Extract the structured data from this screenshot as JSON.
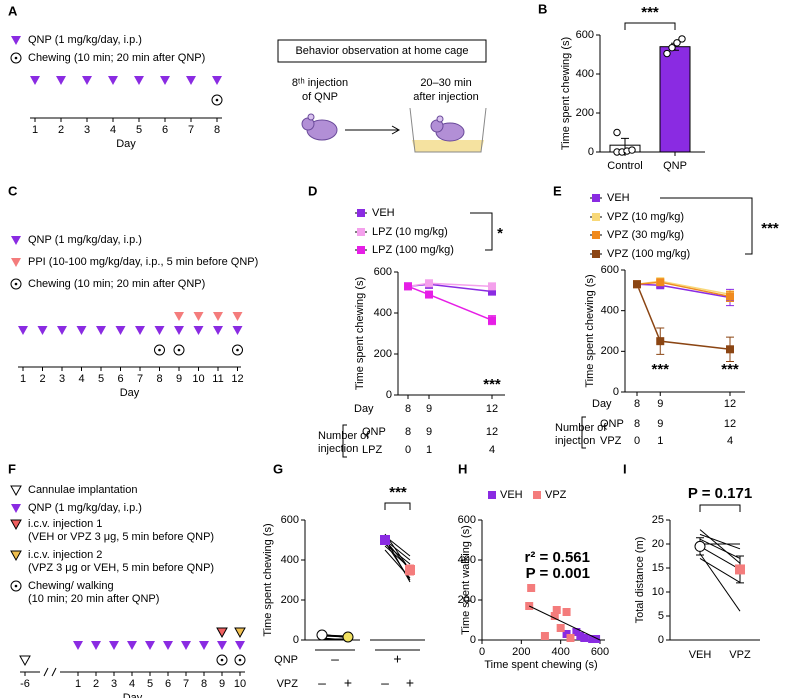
{
  "panel_labels": [
    "A",
    "B",
    "C",
    "D",
    "E",
    "F",
    "G",
    "H",
    "I"
  ],
  "timelines": [
    {
      "days": [
        1,
        2,
        3,
        4,
        5,
        6,
        7,
        8
      ],
      "axis_label": "Day",
      "items": [
        {
          "shape": "triangle",
          "color": "#8a2be2",
          "lines": [
            "QNP (1 mg/kg/day, i.p.)"
          ],
          "at": [
            1,
            2,
            3,
            4,
            5,
            6,
            7,
            8
          ]
        },
        {
          "shape": "dot",
          "color": "#000000",
          "lines": [
            "Chewing (10 min; 20 min after QNP)"
          ],
          "at": [
            8
          ]
        }
      ]
    },
    {
      "days": [
        1,
        2,
        3,
        4,
        5,
        6,
        7,
        8,
        9,
        10,
        11,
        12
      ],
      "axis_label": "Day",
      "items": [
        {
          "shape": "triangle",
          "color": "#8a2be2",
          "lines": [
            "QNP (1 mg/kg/day, i.p.)"
          ],
          "at": [
            1,
            2,
            3,
            4,
            5,
            6,
            7,
            8,
            9,
            10,
            11,
            12
          ]
        },
        {
          "shape": "triangle",
          "color": "#f47c7c",
          "lines": [
            "PPI (10-100 mg/kg/day, i.p., 5 min before QNP)"
          ],
          "at": [
            9,
            10,
            11,
            12
          ]
        },
        {
          "shape": "dot",
          "color": "#000000",
          "lines": [
            "Chewing (10 min; 20 min after QNP)"
          ],
          "at": [
            8,
            9,
            12
          ]
        }
      ]
    },
    {
      "days": [
        -6,
        1,
        2,
        3,
        4,
        5,
        6,
        7,
        8,
        9,
        10
      ],
      "axis_label": "Day",
      "items": [
        {
          "shape": "open-triangle",
          "color": "#ffffff",
          "lines": [
            "Cannulae implantation"
          ],
          "at": [
            -6
          ]
        },
        {
          "shape": "triangle",
          "color": "#8a2be2",
          "lines": [
            "QNP (1 mg/kg/day, i.p.)"
          ],
          "at": [
            1,
            2,
            3,
            4,
            5,
            6,
            7,
            8,
            9,
            10
          ]
        },
        {
          "shape": "outlined-triangle",
          "color": "#f06060",
          "lines": [
            "i.c.v. injection 1",
            "(VEH or VPZ 3 μg, 5 min before QNP)"
          ],
          "at": [
            9
          ]
        },
        {
          "shape": "outlined-triangle",
          "color": "#f0c050",
          "lines": [
            "i.c.v. injection 2",
            "(VPZ 3 μg or VEH, 5 min before QNP)"
          ],
          "at": [
            10
          ]
        },
        {
          "shape": "dot",
          "color": "#000000",
          "lines": [
            "Chewing/ walking",
            "(10 min; 20 min after QNP)"
          ],
          "at": [
            9,
            10
          ]
        }
      ]
    }
  ],
  "scheme": {
    "title": "Behavior observation at home cage",
    "left": [
      "8ᵗʰ injection",
      "of QNP"
    ],
    "right": [
      "20–30 min",
      "after injection"
    ]
  },
  "chart_data": [
    {
      "type": "bar",
      "ylabel": "Time spent chewing (s)",
      "categories": [
        "Control",
        "QNP"
      ],
      "values": [
        35,
        540
      ],
      "errors": [
        35,
        18
      ],
      "colors": [
        "#ffffff",
        "#8a2be2"
      ],
      "points": [
        [
          0,
          0,
          5,
          10,
          100
        ],
        [
          505,
          535,
          560,
          580
        ]
      ],
      "ylim": [
        0,
        600
      ],
      "yticks": [
        0,
        200,
        400,
        600
      ],
      "annotations": [
        "***"
      ]
    },
    {
      "type": "line",
      "ylabel": "Time spent chewing (s)",
      "x": [
        8,
        9,
        12
      ],
      "xticks": [
        8,
        9,
        12
      ],
      "xlabel": "Day",
      "xlim": [
        8,
        12
      ],
      "series": [
        {
          "name": "VEH",
          "color": "#8a2be2",
          "values": [
            530,
            540,
            505
          ],
          "errors": [
            15,
            20,
            18
          ]
        },
        {
          "name": "LPZ (10 mg/kg)",
          "color": "#f4a0ec",
          "values": [
            530,
            545,
            530
          ],
          "errors": [
            10,
            12,
            10
          ]
        },
        {
          "name": "LPZ (100 mg/kg)",
          "color": "#e61ee6",
          "values": [
            530,
            490,
            365
          ],
          "errors": [
            10,
            15,
            22
          ]
        }
      ],
      "ylim": [
        0,
        600
      ],
      "yticks": [
        0,
        200,
        400,
        600
      ],
      "annotations": [
        "*",
        "***"
      ],
      "table": {
        "label": [
          "Number of",
          "injection"
        ],
        "rows": [
          {
            "name": "QNP",
            "values": [
              8,
              9,
              12
            ]
          },
          {
            "name": "LPZ",
            "values": [
              0,
              1,
              4
            ]
          }
        ]
      }
    },
    {
      "type": "line",
      "ylabel": "Time spent chewing (s)",
      "x": [
        8,
        9,
        12
      ],
      "xticks": [
        8,
        9,
        12
      ],
      "xlabel": "Day",
      "xlim": [
        8,
        12
      ],
      "series": [
        {
          "name": "VEH",
          "color": "#8a2be2",
          "values": [
            530,
            525,
            465
          ],
          "errors": [
            15,
            10,
            40
          ]
        },
        {
          "name": "VPZ (10 mg/kg)",
          "color": "#f8d878",
          "values": [
            530,
            545,
            480
          ],
          "errors": [
            10,
            10,
            15
          ]
        },
        {
          "name": "VPZ (30 mg/kg)",
          "color": "#f08a1e",
          "values": [
            530,
            540,
            470
          ],
          "errors": [
            10,
            10,
            25
          ]
        },
        {
          "name": "VPZ (100 mg/kg)",
          "color": "#8b4513",
          "values": [
            530,
            250,
            210
          ],
          "errors": [
            15,
            65,
            60
          ]
        }
      ],
      "ylim": [
        0,
        600
      ],
      "yticks": [
        0,
        200,
        400,
        600
      ],
      "annotations": [
        "***",
        "***",
        "***"
      ],
      "table": {
        "label": [
          "Number of",
          "injection"
        ],
        "rows": [
          {
            "name": "QNP",
            "values": [
              8,
              9,
              12
            ]
          },
          {
            "name": "VPZ",
            "values": [
              0,
              1,
              4
            ]
          }
        ]
      }
    },
    {
      "type": "paired",
      "ylabel": "Time spent chewing (s)",
      "values": [
        25,
        15,
        500,
        350
      ],
      "errors": [
        5,
        5,
        20,
        25
      ],
      "colors": [
        "#ffffff",
        "#f0e060",
        "#8a2be2",
        "#f47c7c"
      ],
      "individuals": [
        [
          30,
          20,
          10,
          25,
          5
        ],
        [
          10,
          15,
          0,
          20,
          5
        ],
        [
          520,
          490,
          480,
          470,
          450,
          500,
          530,
          510
        ],
        [
          420,
          300,
          380,
          360,
          310,
          400,
          350,
          290
        ]
      ],
      "conditions": [
        {
          "name": "QNP",
          "labels": [
            "–",
            "+"
          ]
        },
        {
          "name": "VPZ",
          "labels": [
            "–",
            "+",
            "–",
            "+"
          ]
        }
      ],
      "ylim": [
        0,
        600
      ],
      "yticks": [
        0,
        200,
        400,
        600
      ],
      "annotations": [
        "***"
      ]
    },
    {
      "type": "scatter",
      "xlabel": "Time spent chewing (s)",
      "ylabel": "Time spent walking (s)",
      "series": [
        {
          "name": "VEH",
          "color": "#8a2be2",
          "x": [
            430,
            480,
            500,
            520,
            560,
            580
          ],
          "values": [
            30,
            40,
            20,
            10,
            5,
            5
          ]
        },
        {
          "name": "VPZ",
          "color": "#f47c7c",
          "x": [
            240,
            250,
            320,
            370,
            380,
            400,
            430,
            450
          ],
          "values": [
            170,
            260,
            20,
            120,
            150,
            60,
            140,
            10
          ]
        }
      ],
      "regression": {
        "x": [
          240,
          600
        ],
        "values": [
          170,
          0
        ]
      },
      "xlim": [
        0,
        600
      ],
      "xticks": [
        0,
        200,
        400,
        600
      ],
      "ylim": [
        0,
        600
      ],
      "yticks": [
        0,
        200,
        400,
        600
      ],
      "annotations": [
        "r² = 0.561",
        "P = 0.001"
      ]
    },
    {
      "type": "paired",
      "ylabel": "Total distance (m)",
      "categories": [
        "VEH",
        "VPZ"
      ],
      "values": [
        19.5,
        14.7
      ],
      "errors": [
        1.8,
        2.8
      ],
      "colors": [
        "#ffffff",
        "#f47c7c"
      ],
      "individuals": [
        [
          23,
          22,
          20,
          21,
          18,
          17
        ],
        [
          16,
          19,
          20,
          17,
          6,
          12
        ]
      ],
      "ylim": [
        0,
        25
      ],
      "yticks": [
        0,
        5,
        10,
        15,
        20,
        25
      ],
      "annotations": [
        "P = 0.171"
      ]
    }
  ]
}
